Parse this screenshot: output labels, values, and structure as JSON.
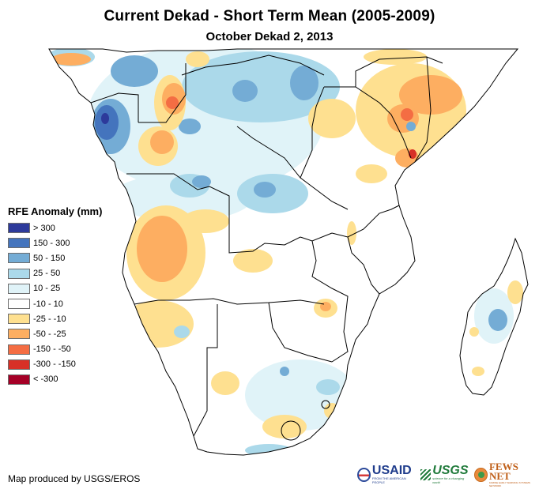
{
  "title": "Current Dekad - Short Term Mean (2005-2009)",
  "subtitle": "October Dekad 2, 2013",
  "legend": {
    "title": "RFE Anomaly (mm)",
    "items": [
      {
        "label": "> 300",
        "color": "#2d3a9b"
      },
      {
        "label": "150 - 300",
        "color": "#4474bd"
      },
      {
        "label": "50 - 150",
        "color": "#74acd5"
      },
      {
        "label": "25 - 50",
        "color": "#abd9ea"
      },
      {
        "label": "10 - 25",
        "color": "#e0f3f8"
      },
      {
        "label": "-10 - 10",
        "color": "#ffffff"
      },
      {
        "label": "-25 - -10",
        "color": "#fee090"
      },
      {
        "label": "-50 - -25",
        "color": "#fdae61"
      },
      {
        "label": "-150 - -50",
        "color": "#f46d43"
      },
      {
        "label": "-300 - -150",
        "color": "#d73027"
      },
      {
        "label": "< -300",
        "color": "#a50026"
      }
    ]
  },
  "credit": "Map produced by USGS/EROS",
  "logos": {
    "usaid": {
      "name": "USAID",
      "tagline": "FROM THE AMERICAN PEOPLE"
    },
    "usgs": {
      "name": "USGS",
      "tagline": "science for a changing world"
    },
    "fewsnet": {
      "name": "FEWS NET",
      "tagline": "FAMINE EARLY WARNING SYSTEMS NETWORK"
    }
  },
  "map": {
    "region": "Central, East and Southern Africa",
    "anomaly_patches": [
      {
        "area": "Gabon / Equatorial Guinea coast",
        "class": "> 300"
      },
      {
        "area": "Gabon / Cameroon",
        "class": "150 - 300"
      },
      {
        "area": "Northern DR Congo",
        "class": "50 - 150"
      },
      {
        "area": "Central African Republic",
        "class": "50 - 150"
      },
      {
        "area": "Central DR Congo",
        "class": "25 - 50"
      },
      {
        "area": "Southern DR Congo",
        "class": "25 - 50"
      },
      {
        "area": "Eastern Madagascar",
        "class": "50 - 150"
      },
      {
        "area": "South Africa interior",
        "class": "10 - 25"
      },
      {
        "area": "Republic of Congo",
        "class": "-50 - -25"
      },
      {
        "area": "Western Angola",
        "class": "-50 - -25"
      },
      {
        "area": "Northern Namibia",
        "class": "-25 - -10"
      },
      {
        "area": "Kenya / Southern Somalia",
        "class": "-50 - -25"
      },
      {
        "area": "Kenya coast",
        "class": "-150 - -50"
      },
      {
        "area": "Uganda",
        "class": "-25 - -10"
      },
      {
        "area": "Lesotho surroundings",
        "class": "-25 - -10"
      },
      {
        "area": "Zimbabwe",
        "class": "-50 - -25"
      },
      {
        "area": "Southern Somalia coast",
        "class": "-150 - -50"
      }
    ]
  }
}
